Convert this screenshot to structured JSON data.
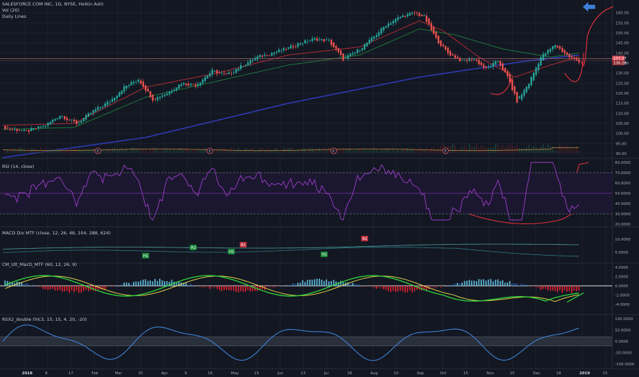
{
  "header": {
    "symbol_line": "SALESFORCE.COM INC, 1D, NYSE, Heikin Ashi",
    "vol_label": "Vol (20)",
    "lines_label": "Daily Lines"
  },
  "chart_data": [
    {
      "type": "candlestick",
      "pane": "price",
      "title": "SALESFORCE.COM INC, 1D, NYSE, Heikin Ashi",
      "ylim": [
        90,
        165
      ],
      "y_ticks": [
        "160.00",
        "155.00",
        "150.00",
        "145.00",
        "140.00",
        "135.00",
        "130.00",
        "125.00",
        "120.00",
        "115.00",
        "110.00",
        "105.00",
        "100.00",
        "95.00",
        "90.00"
      ],
      "last_price_labels": [
        "137.27",
        "136.28"
      ],
      "close_anchor_points": [
        [
          0,
          103
        ],
        [
          10,
          101
        ],
        [
          18,
          104
        ],
        [
          24,
          109
        ],
        [
          31,
          105
        ],
        [
          38,
          111
        ],
        [
          45,
          116
        ],
        [
          51,
          123
        ],
        [
          57,
          127
        ],
        [
          63,
          117
        ],
        [
          69,
          120
        ],
        [
          75,
          125
        ],
        [
          81,
          124
        ],
        [
          88,
          131
        ],
        [
          94,
          129
        ],
        [
          101,
          134
        ],
        [
          107,
          138
        ],
        [
          113,
          140
        ],
        [
          119,
          142
        ],
        [
          125,
          145
        ],
        [
          131,
          147
        ],
        [
          137,
          146
        ],
        [
          143,
          137
        ],
        [
          149,
          141
        ],
        [
          155,
          147
        ],
        [
          161,
          154
        ],
        [
          167,
          158
        ],
        [
          173,
          160
        ],
        [
          177,
          158
        ],
        [
          182,
          147
        ],
        [
          187,
          140
        ],
        [
          193,
          136
        ],
        [
          198,
          137
        ],
        [
          203,
          132
        ],
        [
          208,
          136
        ],
        [
          212,
          128
        ],
        [
          216,
          116
        ],
        [
          221,
          125
        ],
        [
          226,
          138
        ],
        [
          232,
          144
        ],
        [
          238,
          138
        ],
        [
          242,
          136
        ]
      ],
      "red_line_anchor_points": [
        [
          0,
          104
        ],
        [
          30,
          105
        ],
        [
          60,
          123
        ],
        [
          90,
          130
        ],
        [
          120,
          139
        ],
        [
          150,
          143
        ],
        [
          175,
          156
        ],
        [
          185,
          151
        ],
        [
          200,
          138
        ],
        [
          215,
          128
        ],
        [
          230,
          134
        ],
        [
          242,
          138
        ]
      ],
      "green_line_anchor_points": [
        [
          0,
          102
        ],
        [
          30,
          103
        ],
        [
          60,
          118
        ],
        [
          90,
          126
        ],
        [
          120,
          134
        ],
        [
          150,
          139
        ],
        [
          175,
          152
        ],
        [
          190,
          149
        ],
        [
          210,
          142
        ],
        [
          230,
          138
        ],
        [
          242,
          140
        ]
      ],
      "blue_line_anchor_points": [
        [
          0,
          88
        ],
        [
          60,
          98
        ],
        [
          120,
          115
        ],
        [
          175,
          128
        ],
        [
          220,
          136
        ],
        [
          242,
          139
        ]
      ],
      "event_markers": [
        "E",
        "E",
        "E",
        "E"
      ],
      "arrow_annotation": "projected up-move"
    },
    {
      "type": "line",
      "pane": "rsi",
      "title": "RSI (14, close)",
      "ylim": [
        20,
        82
      ],
      "y_ticks": [
        "80.0000",
        "70.0000",
        "60.0000",
        "50.0000",
        "40.0000",
        "30.0000",
        "20.0000"
      ],
      "bands": [
        30,
        50,
        70
      ]
    },
    {
      "type": "line",
      "pane": "macd_div",
      "title": "MACD Div MTF (close, 12, 26, 48, 104, 288, 624)",
      "y_ticks": [
        "10.0000",
        "0.0000"
      ],
      "labels": [
        "H1",
        "H2",
        "H1",
        "R1",
        "H1",
        "R2"
      ]
    },
    {
      "type": "bar",
      "pane": "cm_macd",
      "title": "CM_Ult_MacD_MTF (60, 12, 26, 9)",
      "y_ticks": [
        "4.0000",
        "2.0000",
        "0.0000",
        "-2.0000",
        "-4.0000"
      ]
    },
    {
      "type": "line",
      "pane": "rsx",
      "title": "RSX2_double (hlc3, 15, 15, 4, 20, -20)",
      "y_ticks": [
        "100.0000",
        "50.0000",
        "0.0000",
        "-50.0000",
        "-100.0000"
      ]
    }
  ],
  "x_axis": {
    "labels": [
      "2018",
      "8",
      "17",
      "Feb",
      "Mar",
      "15",
      "Apr",
      "9",
      "16",
      "May",
      "15",
      "Jun",
      "13",
      "Jul",
      "18",
      "Aug",
      "10",
      "Sep",
      "Oct",
      "15",
      "Nov",
      "15",
      "Dec",
      "18",
      "2019",
      "15"
    ]
  }
}
